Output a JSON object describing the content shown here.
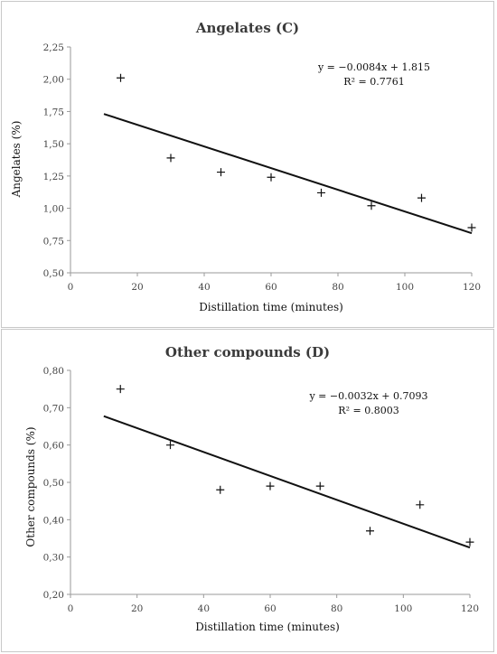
{
  "chart_data": [
    {
      "type": "scatter",
      "title": "Angelates (C)",
      "xlabel": "Distillation time (minutes)",
      "ylabel": "Angelates (%)",
      "xlim": [
        0,
        120
      ],
      "ylim": [
        0.5,
        2.25
      ],
      "x_ticks": [
        0,
        20,
        40,
        60,
        80,
        100,
        120
      ],
      "x_tick_labels": [
        "0",
        "20",
        "40",
        "60",
        "80",
        "100",
        "120"
      ],
      "y_ticks": [
        0.5,
        0.75,
        1.0,
        1.25,
        1.5,
        1.75,
        2.0,
        2.25
      ],
      "y_tick_labels": [
        "0,50",
        "0,75",
        "1,00",
        "1,25",
        "1,50",
        "1,75",
        "2,00",
        "2,25"
      ],
      "grid": false,
      "points": {
        "x": [
          15,
          30,
          45,
          60,
          75,
          90,
          105,
          120
        ],
        "y": [
          2.01,
          1.39,
          1.28,
          1.24,
          1.12,
          1.02,
          1.08,
          0.85
        ]
      },
      "trendline": {
        "slope": -0.0084,
        "intercept": 1.815,
        "x_range": [
          10,
          120
        ]
      },
      "equation_text": "y = −0.0084x + 1.815",
      "r2_text": "R² = 0.7761",
      "annotation_position": "top-right"
    },
    {
      "type": "scatter",
      "title": "Other compounds (D)",
      "xlabel": "Distillation time (minutes)",
      "ylabel": "Other compounds (%)",
      "xlim": [
        0,
        120
      ],
      "ylim": [
        0.2,
        0.8
      ],
      "x_ticks": [
        0,
        20,
        40,
        60,
        80,
        100,
        120
      ],
      "x_tick_labels": [
        "0",
        "20",
        "40",
        "60",
        "80",
        "100",
        "120"
      ],
      "y_ticks": [
        0.2,
        0.3,
        0.4,
        0.5,
        0.6,
        0.7,
        0.8
      ],
      "y_tick_labels": [
        "0,20",
        "0,30",
        "0,40",
        "0,50",
        "0,60",
        "0,70",
        "0,80"
      ],
      "grid": false,
      "points": {
        "x": [
          15,
          30,
          45,
          60,
          75,
          90,
          105,
          120
        ],
        "y": [
          0.75,
          0.6,
          0.48,
          0.49,
          0.49,
          0.37,
          0.44,
          0.34
        ]
      },
      "trendline": {
        "slope": -0.0032,
        "intercept": 0.7093,
        "x_range": [
          10,
          120
        ]
      },
      "equation_text": "y = −0.0032x + 0.7093",
      "r2_text": "R² = 0.8003",
      "annotation_position": "top-right"
    }
  ]
}
